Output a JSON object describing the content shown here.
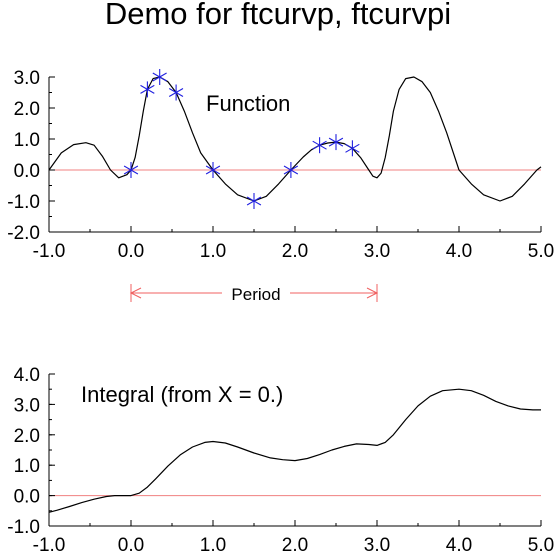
{
  "title": "Demo for ftcurvp, ftcurvpi",
  "period_label": "Period",
  "period_range": [
    0.0,
    3.0
  ],
  "colors": {
    "curve": "#000000",
    "zero_line": "#f08080",
    "markers": "#2020e0",
    "period_arrow": "#f06060"
  },
  "chart_data": [
    {
      "type": "line",
      "annotation": "Function",
      "xlim": [
        -1.0,
        5.0
      ],
      "ylim": [
        -2.0,
        3.0
      ],
      "x_ticks": [
        -1.0,
        0.0,
        1.0,
        2.0,
        3.0,
        4.0,
        5.0
      ],
      "x_tick_labels": [
        "-1.0",
        "0.0",
        "1.0",
        "2.0",
        "3.0",
        "4.0",
        "5.0"
      ],
      "y_ticks": [
        -2.0,
        -1.0,
        0.0,
        1.0,
        2.0,
        3.0
      ],
      "y_tick_labels": [
        "-2.0",
        "-1.0",
        "0.0",
        "1.0",
        "2.0",
        "3.0"
      ],
      "reference_line_y": 0.0,
      "markers": {
        "x": [
          0.0,
          0.2,
          0.35,
          0.55,
          1.0,
          1.5,
          1.95,
          2.3,
          2.5,
          2.7
        ],
        "y": [
          0.0,
          2.6,
          3.0,
          2.5,
          0.0,
          -1.0,
          0.0,
          0.8,
          0.9,
          0.7
        ]
      },
      "curve": {
        "x": [
          -1.0,
          -0.85,
          -0.7,
          -0.55,
          -0.45,
          -0.35,
          -0.25,
          -0.15,
          -0.05,
          0.0,
          0.05,
          0.1,
          0.15,
          0.2,
          0.27,
          0.35,
          0.45,
          0.55,
          0.65,
          0.75,
          0.85,
          1.0,
          1.15,
          1.3,
          1.5,
          1.65,
          1.8,
          1.95,
          2.1,
          2.2,
          2.3,
          2.4,
          2.5,
          2.6,
          2.7,
          2.8,
          2.9,
          2.95,
          3.0,
          3.05,
          3.1,
          3.15,
          3.2,
          3.27,
          3.35,
          3.45,
          3.55,
          3.65,
          3.75,
          3.85,
          4.0,
          4.15,
          4.3,
          4.5,
          4.65,
          4.8,
          4.95,
          5.0
        ],
        "y": [
          0.0,
          0.55,
          0.82,
          0.88,
          0.8,
          0.45,
          0.0,
          -0.25,
          -0.15,
          0.0,
          0.4,
          1.1,
          1.9,
          2.6,
          2.95,
          3.0,
          2.85,
          2.5,
          1.9,
          1.2,
          0.55,
          0.0,
          -0.45,
          -0.8,
          -1.0,
          -0.85,
          -0.45,
          0.0,
          0.42,
          0.65,
          0.8,
          0.87,
          0.9,
          0.85,
          0.7,
          0.4,
          0.0,
          -0.2,
          -0.25,
          -0.1,
          0.4,
          1.1,
          1.9,
          2.6,
          2.95,
          3.0,
          2.85,
          2.5,
          1.9,
          1.2,
          0.0,
          -0.45,
          -0.8,
          -1.0,
          -0.85,
          -0.45,
          0.0,
          0.1
        ]
      }
    },
    {
      "type": "line",
      "annotation": "Integral (from X = 0.)",
      "xlim": [
        -1.0,
        5.0
      ],
      "ylim": [
        -1.0,
        4.0
      ],
      "x_ticks": [
        -1.0,
        0.0,
        1.0,
        2.0,
        3.0,
        4.0,
        5.0
      ],
      "x_tick_labels": [
        "-1.0",
        "0.0",
        "1.0",
        "2.0",
        "3.0",
        "4.0",
        "5.0"
      ],
      "y_ticks": [
        -1.0,
        0.0,
        1.0,
        2.0,
        3.0,
        4.0
      ],
      "y_tick_labels": [
        "-1.0",
        "0.0",
        "1.0",
        "2.0",
        "3.0",
        "4.0"
      ],
      "reference_line_y": 0.0,
      "curve": {
        "x": [
          -1.0,
          -0.9,
          -0.75,
          -0.6,
          -0.45,
          -0.3,
          -0.2,
          -0.1,
          0.0,
          0.1,
          0.2,
          0.3,
          0.45,
          0.6,
          0.75,
          0.9,
          1.0,
          1.15,
          1.3,
          1.5,
          1.7,
          1.85,
          2.0,
          2.15,
          2.3,
          2.45,
          2.6,
          2.75,
          2.9,
          3.0,
          3.1,
          3.2,
          3.35,
          3.5,
          3.65,
          3.8,
          4.0,
          4.15,
          4.3,
          4.45,
          4.6,
          4.75,
          4.9,
          5.0
        ],
        "y": [
          -0.55,
          -0.48,
          -0.36,
          -0.23,
          -0.12,
          -0.03,
          0.0,
          0.0,
          0.0,
          0.08,
          0.28,
          0.55,
          0.97,
          1.34,
          1.6,
          1.75,
          1.78,
          1.73,
          1.6,
          1.4,
          1.24,
          1.18,
          1.15,
          1.22,
          1.35,
          1.5,
          1.62,
          1.7,
          1.68,
          1.65,
          1.75,
          2.0,
          2.5,
          2.95,
          3.27,
          3.45,
          3.5,
          3.45,
          3.3,
          3.1,
          2.95,
          2.85,
          2.82,
          2.82
        ]
      }
    }
  ]
}
